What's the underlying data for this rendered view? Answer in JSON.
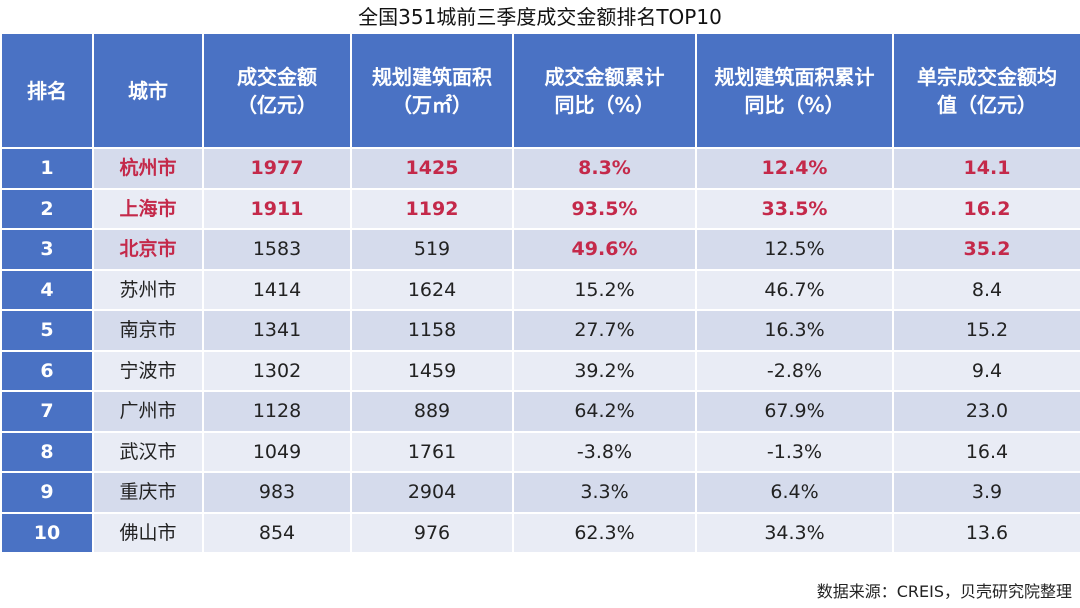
{
  "chart_data": {
    "type": "table",
    "title": "全国351城前三季度成交金额排名TOP10",
    "columns": [
      [
        "排名"
      ],
      [
        "城市"
      ],
      [
        "成交金额",
        "（亿元）"
      ],
      [
        "规划建筑面积",
        "（万㎡）"
      ],
      [
        "成交金额累计",
        "同比（%）"
      ],
      [
        "规划建筑面积累计",
        "同比（%）"
      ],
      [
        "单宗成交金额均",
        "值（亿元）"
      ]
    ],
    "rows": [
      [
        "1",
        "杭州市",
        "1977",
        "1425",
        "8.3%",
        "12.4%",
        "14.1"
      ],
      [
        "2",
        "上海市",
        "1911",
        "1192",
        "93.5%",
        "33.5%",
        "16.2"
      ],
      [
        "3",
        "北京市",
        "1583",
        "519",
        "49.6%",
        "12.5%",
        "35.2"
      ],
      [
        "4",
        "苏州市",
        "1414",
        "1624",
        "15.2%",
        "46.7%",
        "8.4"
      ],
      [
        "5",
        "南京市",
        "1341",
        "1158",
        "27.7%",
        "16.3%",
        "15.2"
      ],
      [
        "6",
        "宁波市",
        "1302",
        "1459",
        "39.2%",
        "-2.8%",
        "9.4"
      ],
      [
        "7",
        "广州市",
        "1128",
        "889",
        "64.2%",
        "67.9%",
        "23.0"
      ],
      [
        "8",
        "武汉市",
        "1049",
        "1761",
        "-3.8%",
        "-1.3%",
        "16.4"
      ],
      [
        "9",
        "重庆市",
        "983",
        "2904",
        "3.3%",
        "6.4%",
        "3.9"
      ],
      [
        "10",
        "佛山市",
        "854",
        "976",
        "62.3%",
        "34.3%",
        "13.6"
      ]
    ],
    "highlighted": [
      [
        false,
        true,
        true,
        true,
        true,
        true,
        true
      ],
      [
        false,
        true,
        true,
        true,
        true,
        true,
        true
      ],
      [
        false,
        true,
        false,
        false,
        true,
        false,
        true
      ],
      [
        false,
        false,
        false,
        false,
        false,
        false,
        false
      ],
      [
        false,
        false,
        false,
        false,
        false,
        false,
        false
      ],
      [
        false,
        false,
        false,
        false,
        false,
        false,
        false
      ],
      [
        false,
        false,
        false,
        false,
        false,
        false,
        false
      ],
      [
        false,
        false,
        false,
        false,
        false,
        false,
        false
      ],
      [
        false,
        false,
        false,
        false,
        false,
        false,
        false
      ],
      [
        false,
        false,
        false,
        false,
        false,
        false,
        false
      ]
    ],
    "colors": {
      "header_bg": "#4a72c4",
      "header_text": "#ffffff",
      "row_odd": "#d5dbec",
      "row_even": "#e9ecf5",
      "highlight_text": "#c4294a",
      "normal_text": "#222222"
    }
  },
  "source": "数据来源：CREIS，贝壳研究院整理"
}
